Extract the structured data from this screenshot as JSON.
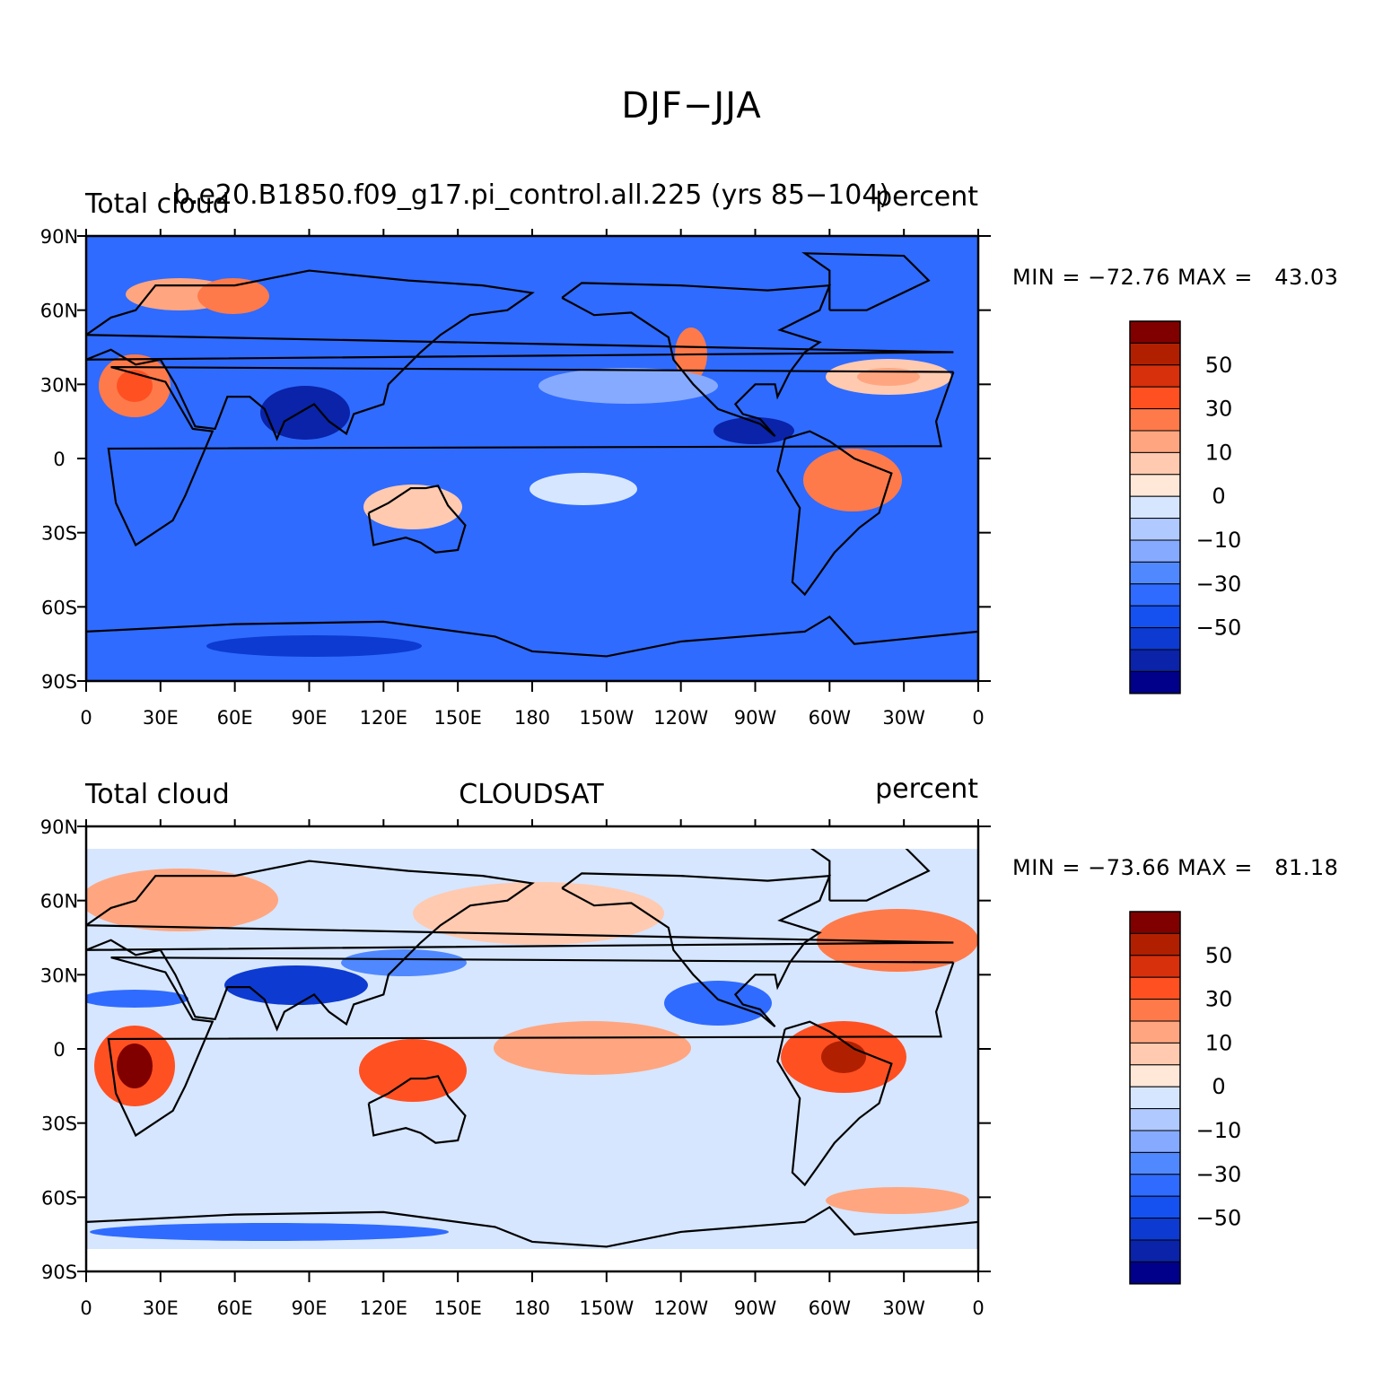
{
  "figure": {
    "title": "DJF−JJA"
  },
  "axes": {
    "lat_labels": [
      "90N",
      "60N",
      "30N",
      "0",
      "30S",
      "60S",
      "90S"
    ],
    "lon_labels": [
      "0",
      "30E",
      "60E",
      "90E",
      "120E",
      "150E",
      "180",
      "150W",
      "120W",
      "90W",
      "60W",
      "30W",
      "0"
    ]
  },
  "colorbar": {
    "labels": [
      "50",
      "30",
      "10",
      "0",
      "−10",
      "−30",
      "−50"
    ],
    "colors": [
      "#00008b",
      "#0a23a8",
      "#0d3ad0",
      "#1550f0",
      "#2f6bff",
      "#5088ff",
      "#86aaff",
      "#b0c9ff",
      "#d6e6ff",
      "#ffe8d8",
      "#ffcab0",
      "#ffa680",
      "#ff7a4a",
      "#ff5022",
      "#d6300c",
      "#b02000",
      "#800000"
    ]
  },
  "panels": [
    {
      "left_title": "Total cloud",
      "center_title": "b.e20.B1850.f09_g17.pi_control.all.225 (yrs 85−104)",
      "right_title": "percent",
      "stats": "MIN = −72.76 MAX =   43.03",
      "field_min": -72.76,
      "field_max": 43.03
    },
    {
      "left_title": "Total cloud",
      "center_title": "CLOUDSAT",
      "right_title": "percent",
      "stats": "MIN = −73.66 MAX =   81.18",
      "field_min": -73.66,
      "field_max": 81.18
    }
  ]
}
